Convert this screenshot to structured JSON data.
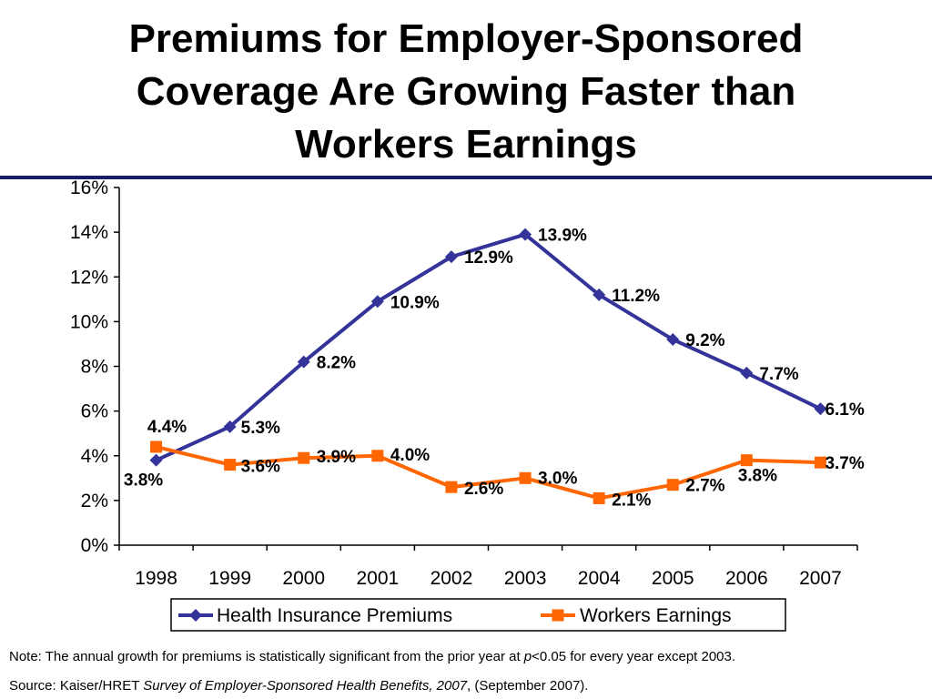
{
  "title_lines": [
    "Premiums for Employer-Sponsored",
    "Coverage Are Growing Faster than",
    "Workers Earnings"
  ],
  "notes": {
    "note_prefix": "Note: The annual growth for premiums is statistically significant from the prior year at ",
    "note_p": "p",
    "note_suffix": "<0.05 for every year except 2003.",
    "source_prefix": "Source: Kaiser/HRET ",
    "source_title": "Survey of Employer-Sponsored Health Benefits, 2007",
    "source_suffix": ", (September 2007)."
  },
  "colors": {
    "rule": "#1a1a6e",
    "premiums": "#333399",
    "earnings": "#ff6600",
    "axis": "#000000"
  },
  "chart_data": {
    "type": "line",
    "title": "Premiums for Employer-Sponsored Coverage Are Growing Faster than Workers Earnings",
    "categories": [
      "1998",
      "1999",
      "2000",
      "2001",
      "2002",
      "2003",
      "2004",
      "2005",
      "2006",
      "2007"
    ],
    "ylim": [
      0,
      16
    ],
    "yticks": [
      0,
      2,
      4,
      6,
      8,
      10,
      12,
      14,
      16
    ],
    "ytick_labels": [
      "0%",
      "2%",
      "4%",
      "6%",
      "8%",
      "10%",
      "12%",
      "14%",
      "16%"
    ],
    "grid": false,
    "legend_position": "bottom",
    "series": [
      {
        "name": "Health Insurance Premiums",
        "marker": "diamond",
        "values": [
          3.8,
          5.3,
          8.2,
          10.9,
          12.9,
          13.9,
          11.2,
          9.2,
          7.7,
          6.1
        ],
        "labels": [
          "3.8%",
          "5.3%",
          "8.2%",
          "10.9%",
          "12.9%",
          "13.9%",
          "11.2%",
          "9.2%",
          "7.7%",
          "6.1%"
        ]
      },
      {
        "name": "Workers Earnings",
        "marker": "square",
        "values": [
          4.4,
          3.6,
          3.9,
          4.0,
          2.6,
          3.0,
          2.1,
          2.7,
          3.8,
          3.7
        ],
        "labels": [
          "4.4%",
          "3.6%",
          "3.9%",
          "4.0%",
          "2.6%",
          "3.0%",
          "2.1%",
          "2.7%",
          "3.8%",
          "3.7%"
        ]
      }
    ]
  }
}
